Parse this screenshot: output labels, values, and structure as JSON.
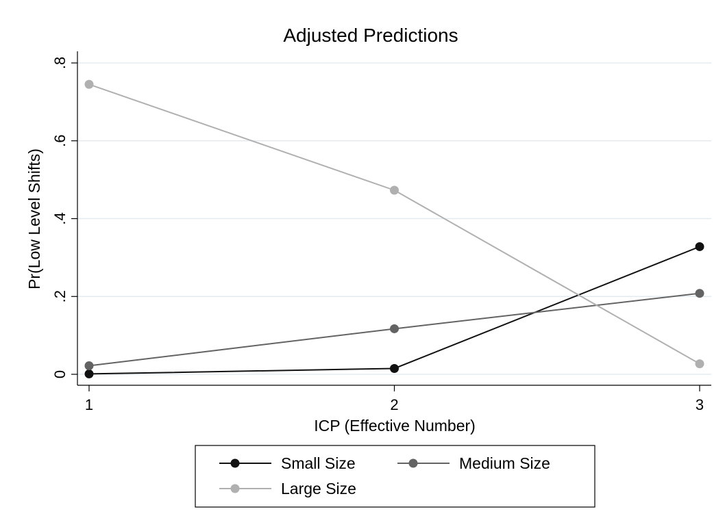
{
  "chart_data": {
    "type": "line",
    "title": "Adjusted Predictions",
    "xlabel": "ICP (Effective Number)",
    "ylabel": "Pr(Low Level Shifts)",
    "x": [
      1,
      2,
      3
    ],
    "x_tick_labels": [
      "1",
      "2",
      "3"
    ],
    "xlim": [
      1,
      3
    ],
    "ylim": [
      0,
      0.8
    ],
    "y_ticks": [
      0,
      0.2,
      0.4,
      0.6,
      0.8
    ],
    "y_tick_labels": [
      "0",
      ".2",
      ".4",
      ".6",
      ".8"
    ],
    "grid": true,
    "legend_position": "bottom",
    "series": [
      {
        "name": "Small Size",
        "values": [
          0.001,
          0.015,
          0.328
        ],
        "color": "#111111"
      },
      {
        "name": "Medium Size",
        "values": [
          0.022,
          0.117,
          0.208
        ],
        "color": "#636363"
      },
      {
        "name": "Large Size",
        "values": [
          0.745,
          0.473,
          0.027
        ],
        "color": "#b0b0b0"
      }
    ]
  },
  "colors": {
    "title": "#1a2f55",
    "grid": "#e3ebef",
    "axis": "#000000"
  }
}
